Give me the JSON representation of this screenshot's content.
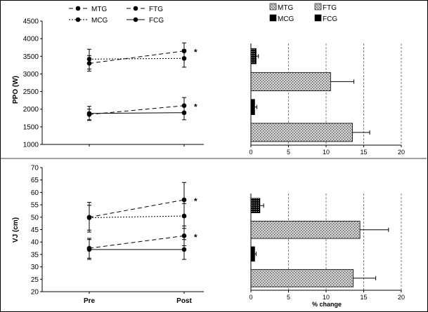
{
  "colors": {
    "ink": "#000000",
    "grid": "#7f7f7f",
    "hatch_fill": "#cfcfcf",
    "hatch_dot": "#4a4a4a"
  },
  "chart_data": [
    {
      "id": "ppo_line",
      "type": "line",
      "ylabel": "PPO (W)",
      "categories": [
        "Pre",
        "Post"
      ],
      "ylim": [
        1000,
        4500
      ],
      "yticks": [
        1000,
        1500,
        2000,
        2500,
        3000,
        3500,
        4000,
        4500
      ],
      "legend": {
        "placement": "top",
        "entries": [
          {
            "label": "MTG",
            "style": "dash"
          },
          {
            "label": "FTG",
            "style": "dash"
          },
          {
            "label": "MCG",
            "style": "dot"
          },
          {
            "label": "FCG",
            "style": "solid"
          }
        ]
      },
      "series": [
        {
          "label": "MTG",
          "style": "dash",
          "values": [
            3300,
            3650
          ],
          "errors": [
            220,
            230
          ],
          "sig_post": "*"
        },
        {
          "label": "MCG",
          "style": "dot",
          "values": [
            3420,
            3440
          ],
          "errors": [
            280,
            250
          ],
          "sig_post": ""
        },
        {
          "label": "FTG",
          "style": "dash",
          "values": [
            1850,
            2100
          ],
          "errors": [
            150,
            230
          ],
          "sig_post": "*"
        },
        {
          "label": "FCG",
          "style": "solid",
          "values": [
            1880,
            1900
          ],
          "errors": [
            200,
            200
          ],
          "sig_post": ""
        }
      ]
    },
    {
      "id": "ppo_bar",
      "type": "bar",
      "orientation": "horizontal",
      "xlim": [
        0,
        20
      ],
      "xticks": [
        0,
        5,
        10,
        15,
        20
      ],
      "xlabel": "",
      "legend": {
        "placement": "top",
        "entries": [
          {
            "label": "MTG",
            "fill": "hatch"
          },
          {
            "label": "FTG",
            "fill": "hatch"
          },
          {
            "label": "MCG",
            "fill": "black"
          },
          {
            "label": "FCG",
            "fill": "black"
          }
        ]
      },
      "bars": [
        {
          "value": 0.7,
          "error": 0.3,
          "fill": "dotted"
        },
        {
          "value": 10.6,
          "error": 3.1,
          "fill": "hatch"
        },
        {
          "value": 0.5,
          "error": 0.3,
          "fill": "black"
        },
        {
          "value": 13.5,
          "error": 2.3,
          "fill": "hatch"
        }
      ]
    },
    {
      "id": "vj_line",
      "type": "line",
      "ylabel": "VJ (cm)",
      "categories": [
        "Pre",
        "Post"
      ],
      "ylim": [
        20,
        70
      ],
      "yticks": [
        20,
        25,
        30,
        35,
        40,
        45,
        50,
        55,
        60,
        65,
        70
      ],
      "series": [
        {
          "label": "MTG",
          "style": "dash",
          "values": [
            50,
            57
          ],
          "errors": [
            6,
            7
          ],
          "sig_post": "*"
        },
        {
          "label": "MCG",
          "style": "dot",
          "values": [
            49.8,
            50.5
          ],
          "errors": [
            5,
            5
          ],
          "sig_post": ""
        },
        {
          "label": "FTG",
          "style": "dash",
          "values": [
            37.5,
            42.5
          ],
          "errors": [
            4,
            4
          ],
          "sig_post": "*"
        },
        {
          "label": "FCG",
          "style": "solid",
          "values": [
            37,
            37
          ],
          "errors": [
            4,
            4
          ],
          "sig_post": ""
        }
      ]
    },
    {
      "id": "vj_bar",
      "type": "bar",
      "orientation": "horizontal",
      "xlim": [
        0,
        20
      ],
      "xticks": [
        0,
        5,
        10,
        15,
        20
      ],
      "xlabel": "% change",
      "bars": [
        {
          "value": 1.2,
          "error": 0.5,
          "fill": "dotted"
        },
        {
          "value": 14.5,
          "error": 3.8,
          "fill": "hatch"
        },
        {
          "value": 0.5,
          "error": 0.2,
          "fill": "black"
        },
        {
          "value": 13.6,
          "error": 3.0,
          "fill": "hatch"
        }
      ]
    }
  ]
}
